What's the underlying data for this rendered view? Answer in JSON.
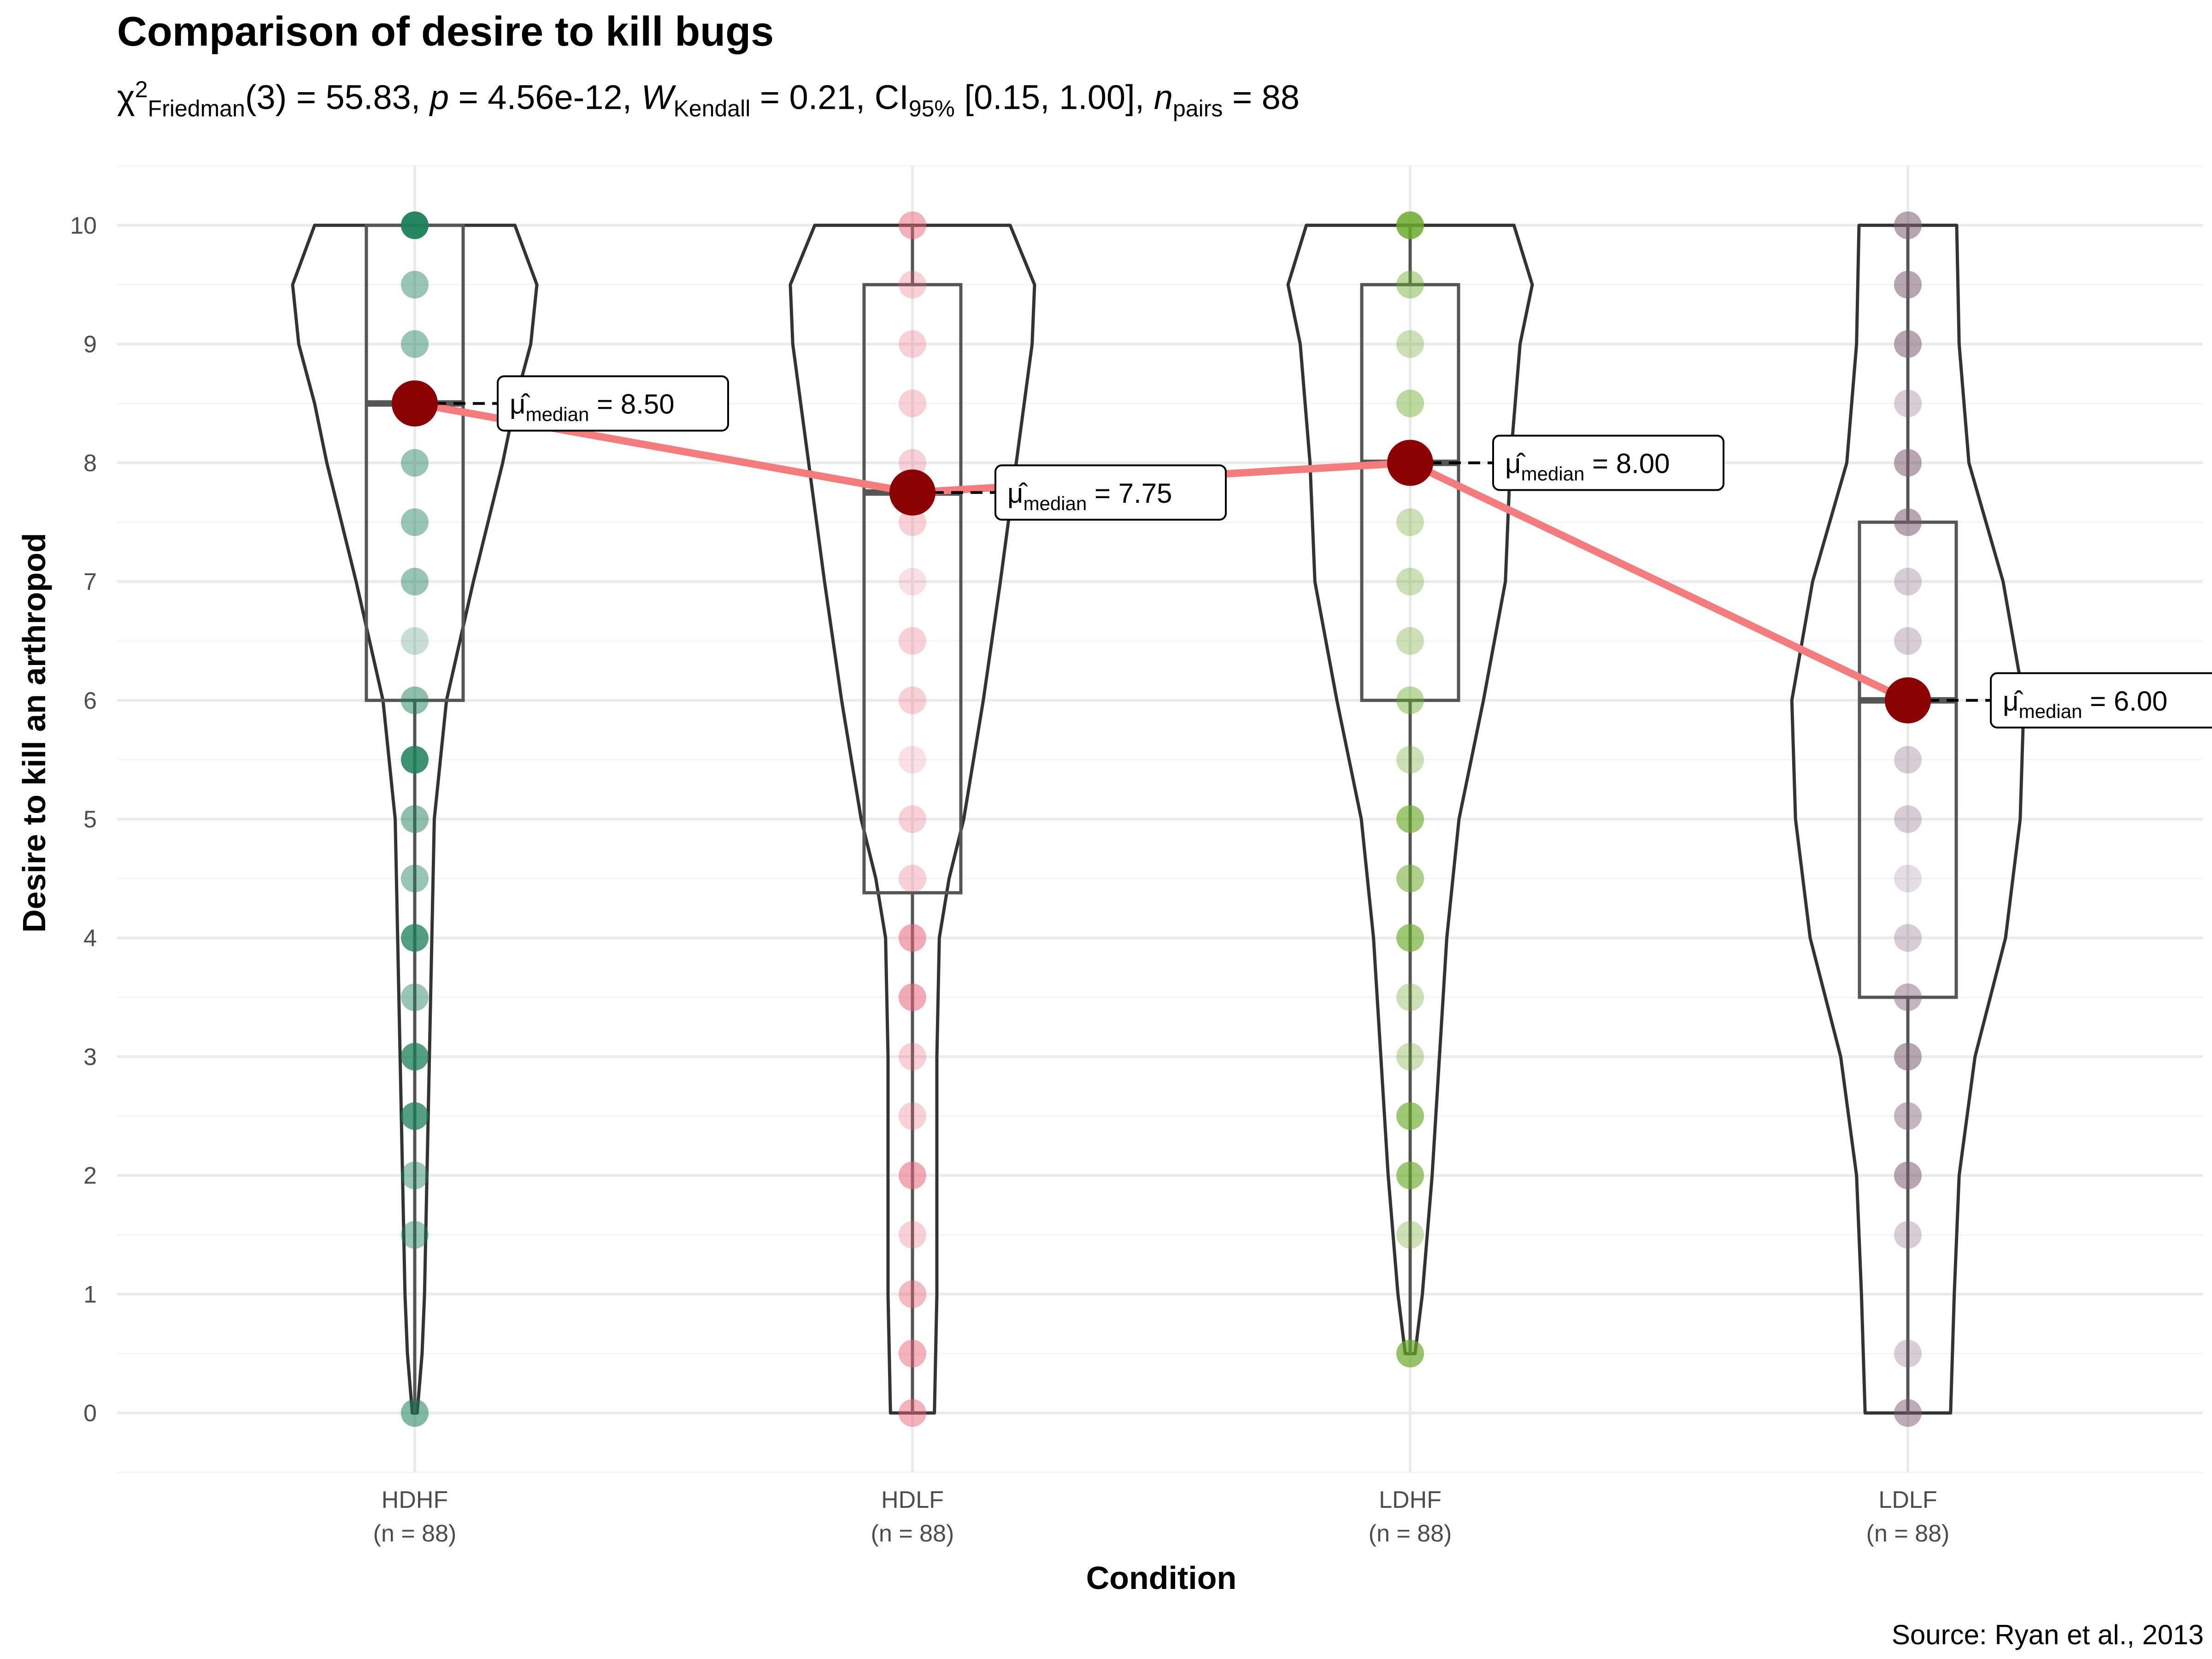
{
  "chart_data": {
    "type": "violin-box-dot",
    "title": "Comparison of desire to kill bugs",
    "subtitle": {
      "chi_symbol": "χ",
      "chi_sup": "2",
      "chi_sub": "Friedman",
      "chi_stat": "(3) = 55.83, ",
      "p_symbol": "p",
      "p_value": " = 4.56e-12, ",
      "w_symbol": "W",
      "w_sub": "Kendall",
      "w_value": " = 0.21, CI",
      "ci_sub": "95%",
      "ci_value": " [0.15, 1.00], ",
      "n_symbol": "n",
      "n_sub": "pairs",
      "n_value": " = 88"
    },
    "xlabel": "Condition",
    "ylabel": "Desire to kill an arthropod",
    "caption": "Source: Ryan et al., 2013",
    "ylim": [
      -0.5,
      10.5
    ],
    "y_ticks": [
      0,
      1,
      2,
      3,
      4,
      5,
      6,
      7,
      8,
      9,
      10
    ],
    "grid": true,
    "annotation_prefix": "μ̂",
    "annotation_sub": "median",
    "groups": [
      {
        "name": "HDHF",
        "n_label": "(n = 88)",
        "color": "#1B7F5A",
        "median": 8.5,
        "median_label": " = 8.50",
        "box": {
          "q1": 6.0,
          "median": 8.5,
          "q3": 10.0,
          "whisker_low": 0.0,
          "whisker_high": 10.0
        },
        "violin": [
          [
            0,
            0.02
          ],
          [
            0.5,
            0.06
          ],
          [
            1,
            0.08
          ],
          [
            2,
            0.1
          ],
          [
            3,
            0.12
          ],
          [
            4,
            0.14
          ],
          [
            5,
            0.16
          ],
          [
            6,
            0.26
          ],
          [
            7,
            0.48
          ],
          [
            8,
            0.72
          ],
          [
            8.5,
            0.82
          ],
          [
            9,
            0.95
          ],
          [
            9.5,
            1.0
          ],
          [
            10,
            0.82
          ]
        ],
        "points": [
          {
            "y": 0,
            "a": 0.55
          },
          {
            "y": 1.5,
            "a": 0.45
          },
          {
            "y": 2,
            "a": 0.45
          },
          {
            "y": 2.5,
            "a": 0.75
          },
          {
            "y": 3,
            "a": 0.75
          },
          {
            "y": 3.5,
            "a": 0.45
          },
          {
            "y": 4,
            "a": 0.75
          },
          {
            "y": 4.5,
            "a": 0.45
          },
          {
            "y": 5,
            "a": 0.5
          },
          {
            "y": 5.5,
            "a": 0.85
          },
          {
            "y": 6,
            "a": 0.5
          },
          {
            "y": 6.5,
            "a": 0.25
          },
          {
            "y": 7,
            "a": 0.45
          },
          {
            "y": 7.5,
            "a": 0.45
          },
          {
            "y": 8,
            "a": 0.45
          },
          {
            "y": 8.5,
            "a": 0.45
          },
          {
            "y": 9,
            "a": 0.45
          },
          {
            "y": 9.5,
            "a": 0.45
          },
          {
            "y": 10,
            "a": 0.95
          }
        ]
      },
      {
        "name": "HDLF",
        "n_label": "(n = 88)",
        "color": "#E8647A",
        "median": 7.75,
        "median_label": " = 7.75",
        "box": {
          "q1": 4.38,
          "median": 7.75,
          "q3": 9.5,
          "whisker_low": 0.0,
          "whisker_high": 10.0
        },
        "violin": [
          [
            0,
            0.18
          ],
          [
            1,
            0.2
          ],
          [
            2,
            0.2
          ],
          [
            3,
            0.2
          ],
          [
            4,
            0.22
          ],
          [
            4.5,
            0.3
          ],
          [
            5,
            0.42
          ],
          [
            6,
            0.58
          ],
          [
            7,
            0.72
          ],
          [
            8,
            0.85
          ],
          [
            9,
            0.98
          ],
          [
            9.5,
            1.0
          ],
          [
            10,
            0.8
          ]
        ],
        "points": [
          {
            "y": 0,
            "a": 0.5
          },
          {
            "y": 0.5,
            "a": 0.5
          },
          {
            "y": 1,
            "a": 0.45
          },
          {
            "y": 1.5,
            "a": 0.3
          },
          {
            "y": 2,
            "a": 0.55
          },
          {
            "y": 2.5,
            "a": 0.3
          },
          {
            "y": 3,
            "a": 0.3
          },
          {
            "y": 3.5,
            "a": 0.55
          },
          {
            "y": 4,
            "a": 0.55
          },
          {
            "y": 4.5,
            "a": 0.3
          },
          {
            "y": 5,
            "a": 0.3
          },
          {
            "y": 5.5,
            "a": 0.2
          },
          {
            "y": 6,
            "a": 0.3
          },
          {
            "y": 6.5,
            "a": 0.3
          },
          {
            "y": 7,
            "a": 0.2
          },
          {
            "y": 7.5,
            "a": 0.3
          },
          {
            "y": 8,
            "a": 0.3
          },
          {
            "y": 8.5,
            "a": 0.3
          },
          {
            "y": 9,
            "a": 0.3
          },
          {
            "y": 9.5,
            "a": 0.3
          },
          {
            "y": 10,
            "a": 0.5
          }
        ]
      },
      {
        "name": "LDHF",
        "n_label": "(n = 88)",
        "color": "#6AAA2A",
        "median": 8.0,
        "median_label": " = 8.00",
        "box": {
          "q1": 6.0,
          "median": 8.0,
          "q3": 9.5,
          "whisker_low": 0.5,
          "whisker_high": 10.0
        },
        "violin": [
          [
            0.5,
            0.04
          ],
          [
            1,
            0.1
          ],
          [
            2,
            0.18
          ],
          [
            3,
            0.24
          ],
          [
            4,
            0.3
          ],
          [
            5,
            0.4
          ],
          [
            6,
            0.6
          ],
          [
            7,
            0.78
          ],
          [
            8,
            0.82
          ],
          [
            9,
            0.9
          ],
          [
            9.5,
            1.0
          ],
          [
            10,
            0.85
          ]
        ],
        "points": [
          {
            "y": 0.5,
            "a": 0.7
          },
          {
            "y": 1.5,
            "a": 0.35
          },
          {
            "y": 2,
            "a": 0.65
          },
          {
            "y": 2.5,
            "a": 0.65
          },
          {
            "y": 3,
            "a": 0.35
          },
          {
            "y": 3.5,
            "a": 0.35
          },
          {
            "y": 4,
            "a": 0.65
          },
          {
            "y": 4.5,
            "a": 0.55
          },
          {
            "y": 5,
            "a": 0.65
          },
          {
            "y": 5.5,
            "a": 0.35
          },
          {
            "y": 6,
            "a": 0.45
          },
          {
            "y": 6.5,
            "a": 0.35
          },
          {
            "y": 7,
            "a": 0.35
          },
          {
            "y": 7.5,
            "a": 0.35
          },
          {
            "y": 8,
            "a": 0.45
          },
          {
            "y": 8.5,
            "a": 0.45
          },
          {
            "y": 9,
            "a": 0.35
          },
          {
            "y": 9.5,
            "a": 0.45
          },
          {
            "y": 10,
            "a": 0.85
          }
        ]
      },
      {
        "name": "LDLF",
        "n_label": "(n = 88)",
        "color": "#7A5A6E",
        "median": 6.0,
        "median_label": " = 6.00",
        "box": {
          "q1": 3.5,
          "median": 6.0,
          "q3": 7.5,
          "whisker_low": 0.0,
          "whisker_high": 10.0
        },
        "violin": [
          [
            0,
            0.35
          ],
          [
            1,
            0.38
          ],
          [
            2,
            0.42
          ],
          [
            3,
            0.55
          ],
          [
            4,
            0.8
          ],
          [
            5,
            0.92
          ],
          [
            6,
            0.95
          ],
          [
            7,
            0.78
          ],
          [
            8,
            0.5
          ],
          [
            9,
            0.42
          ],
          [
            10,
            0.4
          ]
        ],
        "points": [
          {
            "y": 0,
            "a": 0.5
          },
          {
            "y": 0.5,
            "a": 0.3
          },
          {
            "y": 1.5,
            "a": 0.3
          },
          {
            "y": 2,
            "a": 0.55
          },
          {
            "y": 2.5,
            "a": 0.45
          },
          {
            "y": 3,
            "a": 0.55
          },
          {
            "y": 3.5,
            "a": 0.45
          },
          {
            "y": 4,
            "a": 0.3
          },
          {
            "y": 4.5,
            "a": 0.2
          },
          {
            "y": 5,
            "a": 0.3
          },
          {
            "y": 5.5,
            "a": 0.3
          },
          {
            "y": 6,
            "a": 0.3
          },
          {
            "y": 6.5,
            "a": 0.3
          },
          {
            "y": 7,
            "a": 0.3
          },
          {
            "y": 7.5,
            "a": 0.55
          },
          {
            "y": 8,
            "a": 0.55
          },
          {
            "y": 8.5,
            "a": 0.3
          },
          {
            "y": 9,
            "a": 0.55
          },
          {
            "y": 9.5,
            "a": 0.55
          },
          {
            "y": 10,
            "a": 0.55
          }
        ]
      }
    ],
    "colors": {
      "median_point": "#8B0000",
      "median_line": "#F47C7C",
      "grid": "#EBEBEB",
      "outline": "#333333"
    }
  }
}
